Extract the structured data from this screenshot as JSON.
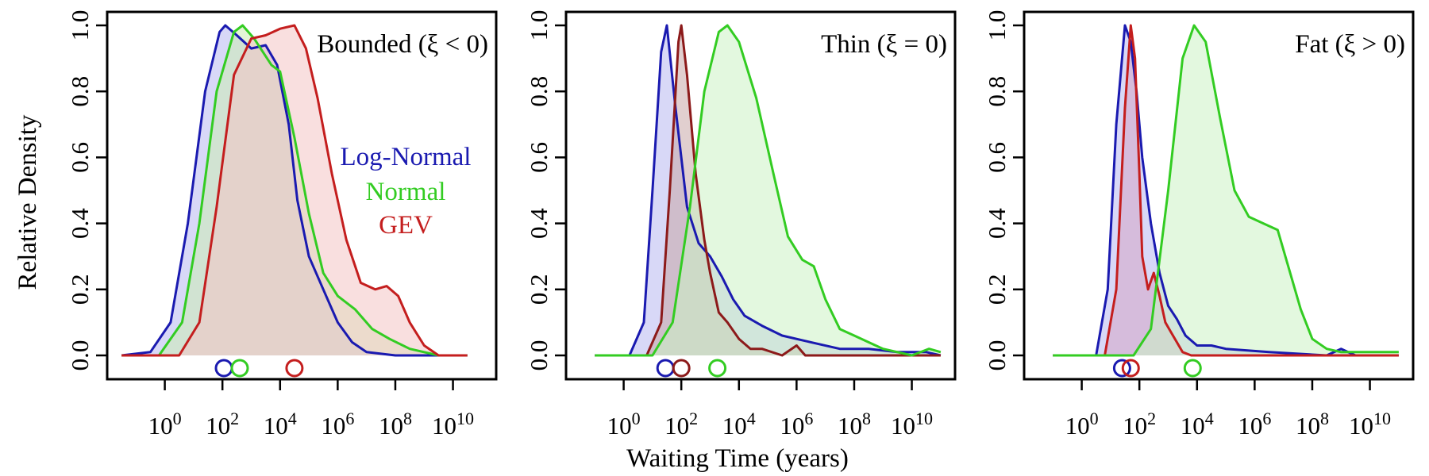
{
  "figure": {
    "ylabel": "Relative Density",
    "xlabel": "Waiting Time (years)"
  },
  "legend": [
    {
      "label": "Log-Normal",
      "color": "#1a1ab0"
    },
    {
      "label": "Normal",
      "color": "#33cc22"
    },
    {
      "label": "GEV",
      "color": "#c41e1e"
    }
  ],
  "chart_data": [
    {
      "type": "area",
      "title": "Bounded (ξ < 0)",
      "xscale": "log10",
      "x_range": [
        -2,
        11.5
      ],
      "ylim": [
        0,
        1.0
      ],
      "x_ticks": [
        "10^0",
        "10^2",
        "10^4",
        "10^6",
        "10^8",
        "10^10"
      ],
      "x_tick_values": [
        0,
        2,
        4,
        6,
        8,
        10
      ],
      "y_ticks": [
        "0.0",
        "0.2",
        "0.4",
        "0.6",
        "0.8",
        "1.0"
      ],
      "y_tick_values": [
        0,
        0.2,
        0.4,
        0.6,
        0.8,
        1.0
      ],
      "series": [
        {
          "name": "Log-Normal",
          "color": "#1a1ab0",
          "fill": "#b8b8f0",
          "marker_x": 2.05,
          "x": [
            -1.5,
            -0.5,
            0.2,
            0.8,
            1.4,
            1.9,
            2.1,
            2.5,
            3.0,
            3.5,
            3.9,
            4.3,
            4.6,
            5.0,
            5.5,
            6.0,
            6.5,
            7.0,
            8.0,
            9.0,
            10.5
          ],
          "y": [
            0.0,
            0.01,
            0.1,
            0.4,
            0.8,
            0.98,
            1.0,
            0.97,
            0.93,
            0.94,
            0.88,
            0.7,
            0.47,
            0.3,
            0.2,
            0.1,
            0.04,
            0.01,
            0.0,
            0.0,
            0.0
          ]
        },
        {
          "name": "Normal",
          "color": "#33cc22",
          "fill": "#ccecb4",
          "marker_x": 2.6,
          "x": [
            -1.5,
            -0.2,
            0.6,
            1.2,
            1.8,
            2.4,
            2.7,
            3.1,
            3.7,
            4.0,
            4.5,
            5.0,
            5.5,
            6.0,
            6.6,
            7.2,
            7.8,
            8.5,
            9.5,
            10.5
          ],
          "y": [
            0.0,
            0.0,
            0.1,
            0.4,
            0.8,
            0.98,
            1.0,
            0.96,
            0.88,
            0.86,
            0.66,
            0.43,
            0.25,
            0.18,
            0.14,
            0.08,
            0.05,
            0.02,
            0.0,
            0.0
          ]
        },
        {
          "name": "GEV",
          "color": "#c41e1e",
          "fill": "#f4c4c4",
          "marker_x": 4.5,
          "x": [
            -1.5,
            0.5,
            1.2,
            1.8,
            2.4,
            3.0,
            3.5,
            4.0,
            4.5,
            4.9,
            5.3,
            5.8,
            6.3,
            6.8,
            7.3,
            7.7,
            8.1,
            8.5,
            9.0,
            9.5,
            10.5
          ],
          "y": [
            0.0,
            0.0,
            0.1,
            0.45,
            0.85,
            0.96,
            0.97,
            0.99,
            1.0,
            0.93,
            0.78,
            0.55,
            0.35,
            0.22,
            0.2,
            0.21,
            0.18,
            0.1,
            0.03,
            0.0,
            0.0
          ]
        }
      ]
    },
    {
      "type": "area",
      "title": "Thin (ξ = 0)",
      "xscale": "log10",
      "x_range": [
        -2,
        11.5
      ],
      "ylim": [
        0,
        1.0
      ],
      "x_ticks": [
        "10^0",
        "10^2",
        "10^4",
        "10^6",
        "10^8",
        "10^10"
      ],
      "x_tick_values": [
        0,
        2,
        4,
        6,
        8,
        10
      ],
      "y_ticks": [
        "0.0",
        "0.2",
        "0.4",
        "0.6",
        "0.8",
        "1.0"
      ],
      "y_tick_values": [
        0,
        0.2,
        0.4,
        0.6,
        0.8,
        1.0
      ],
      "series": [
        {
          "name": "Log-Normal",
          "color": "#1a1ab0",
          "fill": "#b8b8f0",
          "marker_x": 1.45,
          "x": [
            -1.0,
            0.2,
            0.7,
            1.0,
            1.3,
            1.5,
            1.8,
            2.2,
            2.6,
            3.0,
            3.4,
            3.8,
            4.2,
            4.8,
            5.5,
            6.5,
            7.5,
            8.5,
            9.5,
            10.5,
            11.0
          ],
          "y": [
            0.0,
            0.0,
            0.1,
            0.5,
            0.92,
            1.0,
            0.75,
            0.45,
            0.34,
            0.3,
            0.24,
            0.17,
            0.12,
            0.09,
            0.06,
            0.04,
            0.02,
            0.02,
            0.01,
            0.01,
            0.0
          ]
        },
        {
          "name": "GEV",
          "color": "#8c1a1a",
          "fill": "#c9a7a7",
          "marker_x": 2.0,
          "x": [
            -1.0,
            0.8,
            1.3,
            1.6,
            1.9,
            2.0,
            2.2,
            2.5,
            2.8,
            3.0,
            3.3,
            3.6,
            4.0,
            4.4,
            4.8,
            5.5,
            6.0,
            6.3,
            7.0,
            8.0,
            11.0
          ],
          "y": [
            0.0,
            0.0,
            0.1,
            0.5,
            0.95,
            1.0,
            0.85,
            0.55,
            0.35,
            0.25,
            0.13,
            0.1,
            0.05,
            0.02,
            0.02,
            0.0,
            0.03,
            0.0,
            0.0,
            0.0,
            0.0
          ]
        },
        {
          "name": "Normal",
          "color": "#33cc22",
          "fill": "#ccf2c4",
          "marker_x": 3.25,
          "x": [
            -1.0,
            1.0,
            1.7,
            2.3,
            2.8,
            3.3,
            3.6,
            4.0,
            4.6,
            5.2,
            5.7,
            6.2,
            6.6,
            7.0,
            7.5,
            8.0,
            8.5,
            9.0,
            10.0,
            10.6,
            11.0
          ],
          "y": [
            0.0,
            0.0,
            0.1,
            0.45,
            0.8,
            0.98,
            1.0,
            0.95,
            0.78,
            0.55,
            0.36,
            0.29,
            0.27,
            0.17,
            0.08,
            0.06,
            0.04,
            0.02,
            0.0,
            0.02,
            0.01
          ]
        }
      ]
    },
    {
      "type": "area",
      "title": "Fat (ξ > 0)",
      "xscale": "log10",
      "x_range": [
        -2,
        11.5
      ],
      "ylim": [
        0,
        1.0
      ],
      "x_ticks": [
        "10^0",
        "10^2",
        "10^4",
        "10^6",
        "10^8",
        "10^10"
      ],
      "x_tick_values": [
        0,
        2,
        4,
        6,
        8,
        10
      ],
      "y_ticks": [
        "0.0",
        "0.2",
        "0.4",
        "0.6",
        "0.8",
        "1.0"
      ],
      "y_tick_values": [
        0,
        0.2,
        0.4,
        0.6,
        0.8,
        1.0
      ],
      "series": [
        {
          "name": "Log-Normal",
          "color": "#1a1ab0",
          "fill": "#b8b8f0",
          "marker_x": 1.4,
          "x": [
            -1.0,
            0.5,
            0.9,
            1.2,
            1.5,
            1.7,
            1.9,
            2.1,
            2.4,
            2.7,
            3.0,
            3.3,
            3.6,
            4.0,
            4.5,
            5.0,
            6.5,
            8.5,
            9.0,
            9.5,
            11.0
          ],
          "y": [
            0.0,
            0.0,
            0.2,
            0.7,
            1.0,
            0.95,
            0.8,
            0.6,
            0.4,
            0.25,
            0.15,
            0.11,
            0.06,
            0.03,
            0.03,
            0.02,
            0.01,
            0.0,
            0.02,
            0.0,
            0.0
          ]
        },
        {
          "name": "GEV",
          "color": "#c41e1e",
          "fill": "#d6a6c6",
          "marker_x": 1.7,
          "x": [
            -1.0,
            0.8,
            1.2,
            1.5,
            1.7,
            1.85,
            2.0,
            2.1,
            2.3,
            2.5,
            2.7,
            2.9,
            3.1,
            3.3,
            3.5,
            3.8,
            11.0
          ],
          "y": [
            0.0,
            0.0,
            0.2,
            0.75,
            1.0,
            0.9,
            0.55,
            0.3,
            0.2,
            0.25,
            0.18,
            0.1,
            0.07,
            0.04,
            0.01,
            0.0,
            0.0
          ]
        },
        {
          "name": "Normal",
          "color": "#33cc22",
          "fill": "#ccf2c4",
          "marker_x": 3.85,
          "x": [
            -1.0,
            1.8,
            2.4,
            3.0,
            3.5,
            3.9,
            4.3,
            4.8,
            5.3,
            5.8,
            6.3,
            6.8,
            7.2,
            7.6,
            8.0,
            8.5,
            9.0,
            10.0,
            11.0
          ],
          "y": [
            0.0,
            0.0,
            0.08,
            0.5,
            0.9,
            1.0,
            0.95,
            0.72,
            0.5,
            0.42,
            0.4,
            0.38,
            0.26,
            0.14,
            0.05,
            0.02,
            0.01,
            0.01,
            0.01
          ]
        }
      ]
    }
  ]
}
